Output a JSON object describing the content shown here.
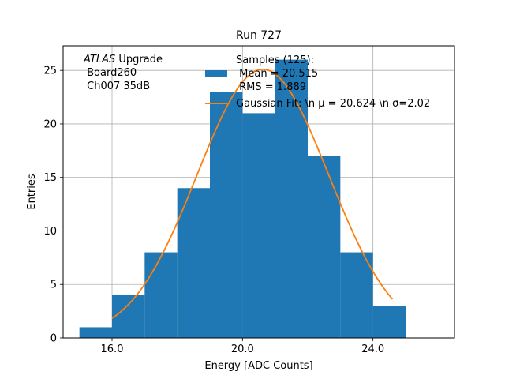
{
  "chart_data": {
    "type": "bar",
    "title": "Run 727",
    "xlabel": "Energy [ADC Counts]",
    "ylabel": "Entries",
    "xlim": [
      14.5,
      26.5
    ],
    "ylim": [
      0,
      27.3
    ],
    "grid": true,
    "x_ticks": [
      {
        "value": 16,
        "label": "16.0"
      },
      {
        "value": 20,
        "label": "20.0"
      },
      {
        "value": 24,
        "label": "24.0"
      }
    ],
    "y_ticks": [
      {
        "value": 0,
        "label": "0"
      },
      {
        "value": 5,
        "label": "5"
      },
      {
        "value": 10,
        "label": "10"
      },
      {
        "value": 15,
        "label": "15"
      },
      {
        "value": 20,
        "label": "20"
      },
      {
        "value": 25,
        "label": "25"
      }
    ],
    "bin_edges": [
      15,
      16,
      17,
      18,
      19,
      20,
      21,
      22,
      23,
      24,
      25
    ],
    "counts": [
      1,
      4,
      8,
      14,
      23,
      21,
      26,
      17,
      8,
      3
    ],
    "fit": {
      "amplitude": 25.1,
      "mu": 20.624,
      "sigma": 2.02,
      "x_range": [
        16.0,
        24.6
      ]
    },
    "legend_position": "top-center",
    "legend": {
      "hist_lines": [
        "Samples (125):",
        " Mean = 20.515",
        " RMS = 1.889"
      ],
      "fit_label": "Gaussian Fit: \\n μ = 20.624 \\n σ=2.02"
    },
    "annotation": {
      "italic_part": "ATLAS",
      "rest": " Upgrade",
      "line2": " Board260",
      "line3": " Ch007 35dB"
    },
    "colors": {
      "bars": "#1f77b4",
      "fit": "#ff7f0e",
      "grid": "#b0b0b0"
    }
  }
}
